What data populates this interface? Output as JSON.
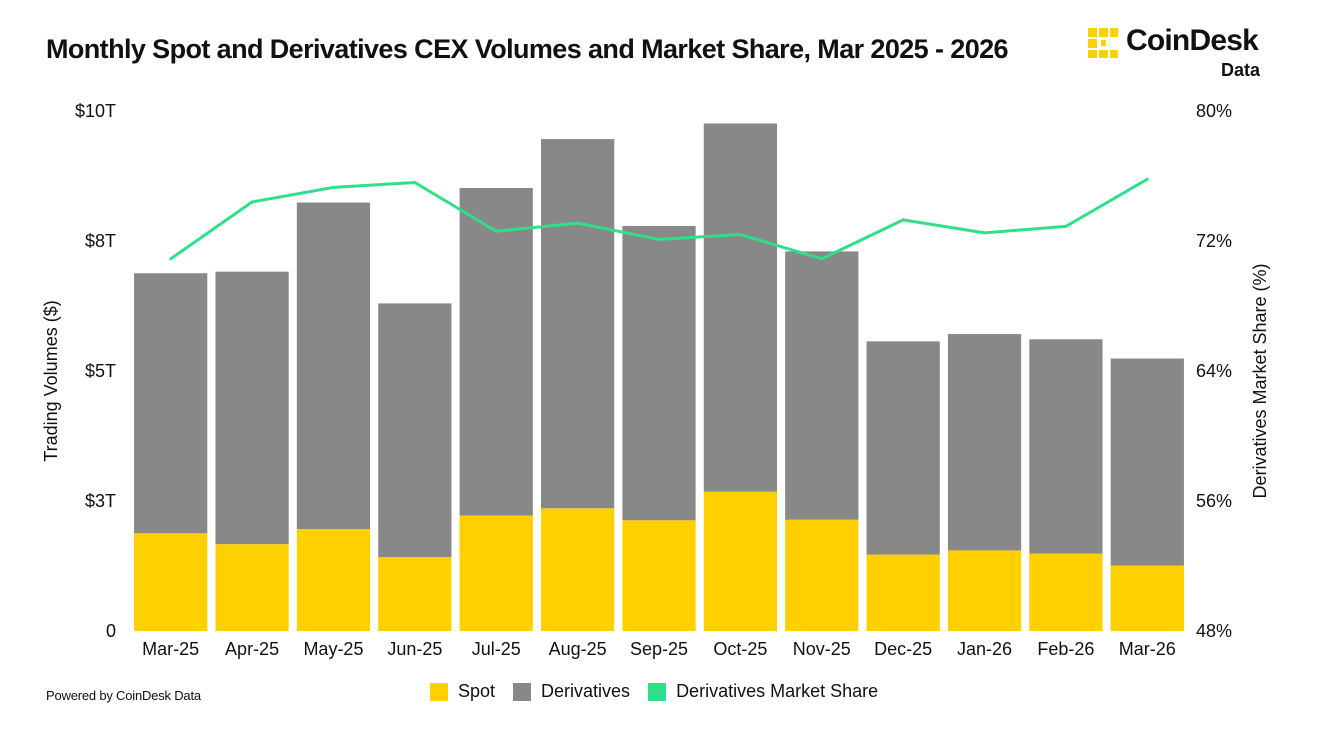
{
  "title": "Monthly Spot and Derivatives CEX Volumes and Market Share, Mar 2025 - 2026",
  "logo": {
    "name": "CoinDesk",
    "sub": "Data"
  },
  "footer": "Powered by CoinDesk Data",
  "colors": {
    "spot": "#ffd000",
    "derivatives": "#888888",
    "share": "#2ee08a"
  },
  "chart_data": {
    "type": "bar",
    "stacked": true,
    "categories": [
      "Mar-25",
      "Apr-25",
      "May-25",
      "Jun-25",
      "Jul-25",
      "Aug-25",
      "Sep-25",
      "Oct-25",
      "Nov-25",
      "Dec-25",
      "Jan-26",
      "Feb-26",
      "Mar-26"
    ],
    "series": [
      {
        "name": "Spot",
        "axis": "left",
        "values": [
          1.88,
          1.67,
          1.96,
          1.42,
          2.22,
          2.36,
          2.13,
          2.68,
          2.14,
          1.47,
          1.55,
          1.49,
          1.26
        ]
      },
      {
        "name": "Derivatives",
        "axis": "left",
        "values": [
          5.0,
          5.24,
          6.28,
          4.88,
          6.3,
          7.1,
          5.66,
          7.08,
          5.16,
          4.1,
          4.16,
          4.12,
          3.98
        ]
      },
      {
        "name": "Derivatives Market Share",
        "type": "line",
        "axis": "right",
        "values": [
          70.9,
          74.4,
          75.3,
          75.6,
          72.6,
          73.1,
          72.1,
          72.4,
          70.9,
          73.3,
          72.5,
          72.9,
          75.8
        ]
      }
    ],
    "ylabel": "Trading Volumes ($)",
    "ylabel_right": "Derivatives Market Share (%)",
    "ylim": [
      0,
      10
    ],
    "ylim_right": [
      48,
      80
    ],
    "yticks": [
      {
        "value": 0,
        "label": "0"
      },
      {
        "value": 2.5,
        "label": "$3T"
      },
      {
        "value": 5,
        "label": "$5T"
      },
      {
        "value": 7.5,
        "label": "$8T"
      },
      {
        "value": 10,
        "label": "$10T"
      }
    ],
    "yticks_right": [
      {
        "value": 48,
        "label": "48%"
      },
      {
        "value": 56,
        "label": "56%"
      },
      {
        "value": 64,
        "label": "64%"
      },
      {
        "value": 72,
        "label": "72%"
      },
      {
        "value": 80,
        "label": "80%"
      }
    ],
    "legend": [
      "Spot",
      "Derivatives",
      "Derivatives Market Share"
    ],
    "legend_position": "bottom-center",
    "grid": false
  }
}
